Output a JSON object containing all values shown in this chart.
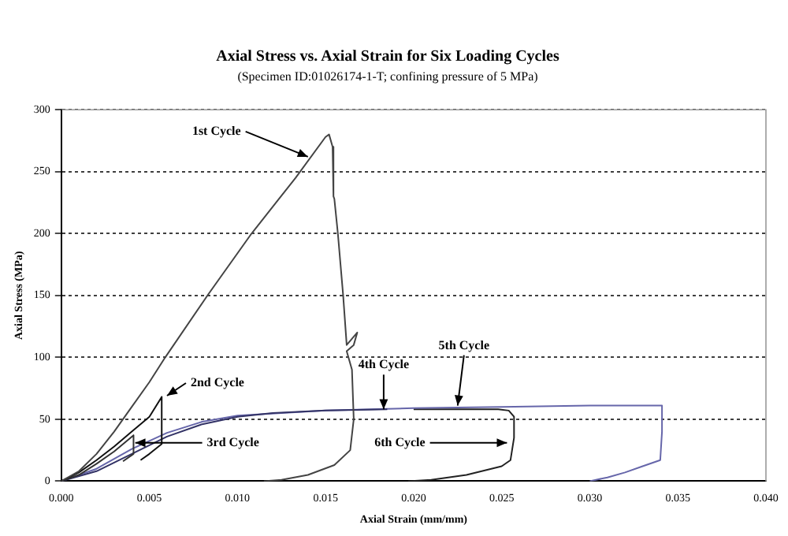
{
  "chart_data": {
    "type": "line",
    "title": "Axial Stress vs. Axial Strain for Six Loading Cycles",
    "subtitle": "(Specimen ID:01026174-1-T; confining pressure of 5 MPa)",
    "xlabel": "Axial Strain (mm/mm)",
    "ylabel": "Axial Stress (MPa)",
    "xlim": [
      0,
      0.04
    ],
    "ylim": [
      0,
      300
    ],
    "xticks": [
      {
        "value": 0,
        "label": "0.000"
      },
      {
        "value": 0.005,
        "label": "0.005"
      },
      {
        "value": 0.01,
        "label": "0.010"
      },
      {
        "value": 0.015,
        "label": "0.015"
      },
      {
        "value": 0.02,
        "label": "0.020"
      },
      {
        "value": 0.025,
        "label": "0.025"
      },
      {
        "value": 0.03,
        "label": "0.030"
      },
      {
        "value": 0.035,
        "label": "0.035"
      },
      {
        "value": 0.04,
        "label": "0.040"
      }
    ],
    "yticks": [
      0,
      50,
      100,
      150,
      200,
      250,
      300
    ],
    "grid": "y",
    "legend": false,
    "marker": "none",
    "line_style": "solid",
    "series": [
      {
        "color": "#444444",
        "x": [
          0,
          0.001,
          0.002,
          0.003,
          0.004,
          0.005,
          0.0059,
          0.0083,
          0.0108,
          0.0133,
          0.015,
          0.0152,
          0.0154,
          0.01545,
          0.0155,
          0.0157,
          0.016,
          0.0162,
          0.0168,
          0.0166,
          0.0162,
          0.0165,
          0.0166,
          0.0164,
          0.0155,
          0.014,
          0.0125,
          0.0115
        ],
        "values": [
          0,
          8,
          22,
          40,
          60,
          80,
          100,
          150,
          200,
          245,
          278,
          280,
          270,
          230,
          228,
          200,
          150,
          110,
          120,
          110,
          105,
          90,
          50,
          25,
          13,
          5,
          1,
          0
        ]
      },
      {
        "color": "#111111",
        "x": [
          0,
          0.001,
          0.002,
          0.003,
          0.004,
          0.005,
          0.0057,
          0.0057,
          0.005,
          0.0045
        ],
        "values": [
          0,
          7,
          17,
          28,
          40,
          52,
          68,
          30,
          22,
          17
        ]
      },
      {
        "color": "#333333",
        "x": [
          0,
          0.001,
          0.002,
          0.003,
          0.0041,
          0.0041,
          0.0035
        ],
        "values": [
          0,
          5,
          14,
          24,
          37,
          22,
          16
        ]
      },
      {
        "color": "#333366",
        "x": [
          0,
          0.002,
          0.004,
          0.006,
          0.008,
          0.01,
          0.012,
          0.015,
          0.0185
        ],
        "values": [
          0,
          8,
          22,
          36,
          46,
          52,
          55,
          57,
          58
        ]
      },
      {
        "color": "#6666aa",
        "x": [
          0,
          0.002,
          0.004,
          0.006,
          0.008,
          0.01,
          0.015,
          0.02,
          0.025,
          0.03,
          0.0341,
          0.0341,
          0.034,
          0.033,
          0.032,
          0.031,
          0.03
        ],
        "values": [
          0,
          10,
          26,
          39,
          48,
          53,
          57,
          59,
          60,
          61,
          61,
          40,
          17,
          12,
          7,
          3,
          0
        ]
      },
      {
        "color": "#222222",
        "x": [
          0.0197,
          0.021,
          0.023,
          0.025,
          0.0255,
          0.0257,
          0.0257,
          0.0254,
          0.0248,
          0.022,
          0.02
        ],
        "values": [
          0,
          1,
          5,
          12,
          17,
          35,
          52,
          57,
          58,
          58,
          58
        ]
      }
    ],
    "annotations": [
      {
        "text": "1st Cycle",
        "x": 0.014,
        "y": 262
      },
      {
        "text": "2nd Cycle",
        "x": 0.006,
        "y": 69
      },
      {
        "text": "3rd Cycle",
        "x": 0.0042,
        "y": 31
      },
      {
        "text": "4th Cycle",
        "x": 0.0183,
        "y": 58
      },
      {
        "text": "5th Cycle",
        "x": 0.0225,
        "y": 61
      },
      {
        "text": "6th Cycle",
        "x": 0.0253,
        "y": 31
      }
    ]
  }
}
